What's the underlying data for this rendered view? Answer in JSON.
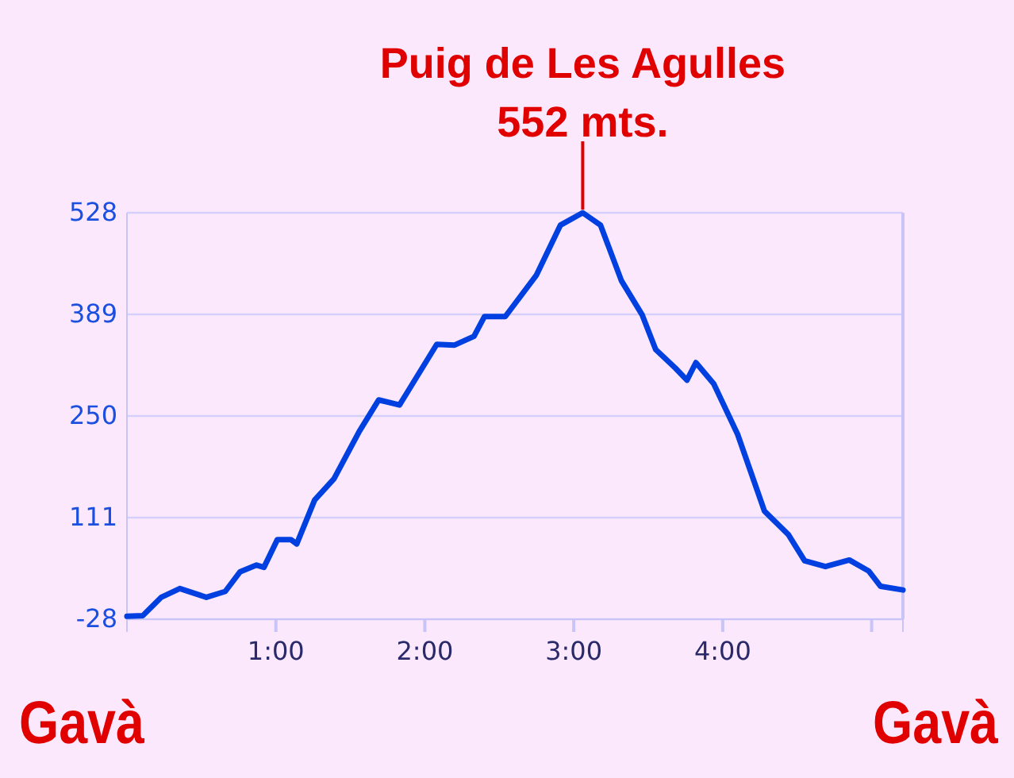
{
  "chart_data": {
    "type": "line",
    "x": [
      0,
      0.107,
      0.23,
      0.355,
      0.533,
      0.66,
      0.76,
      0.87,
      0.92,
      1.01,
      1.1,
      1.14,
      1.26,
      1.39,
      1.56,
      1.69,
      1.83,
      2.08,
      2.2,
      2.33,
      2.4,
      2.54,
      2.75,
      2.91,
      3.06,
      3.18,
      3.32,
      3.46,
      3.55,
      3.68,
      3.76,
      3.82,
      3.94,
      4.1,
      4.28,
      4.44,
      4.55,
      4.69,
      4.85,
      4.98,
      5.06,
      5.21
    ],
    "series": [
      {
        "color": "#0040e0",
        "values": [
          -24,
          -23,
          2,
          14,
          2,
          10,
          37,
          46,
          43,
          81,
          81,
          75,
          135,
          164,
          229,
          272,
          265,
          348,
          347,
          359,
          386,
          386,
          443,
          511,
          528,
          511,
          435,
          388,
          341,
          316,
          299,
          323,
          294,
          225,
          120,
          88,
          52,
          44,
          53,
          38,
          17,
          12
        ]
      }
    ],
    "xlim": [
      0,
      5.21
    ],
    "xticks": [
      {
        "value": 1,
        "label": "1:00"
      },
      {
        "value": 2,
        "label": "2:00"
      },
      {
        "value": 3,
        "label": "3:00"
      },
      {
        "value": 4,
        "label": "4:00"
      },
      {
        "value": 5,
        "label": null
      }
    ],
    "ylim": [
      -28,
      528
    ],
    "yticks": [
      -28,
      111,
      250,
      389,
      528
    ],
    "grid": "y",
    "line_style": "solid",
    "marker": "none",
    "annotations": [
      {
        "text": "Puig de Les Agulles\n552 mts.",
        "x": 3.06,
        "y": 528
      },
      "Gavà",
      "Gavà"
    ]
  }
}
